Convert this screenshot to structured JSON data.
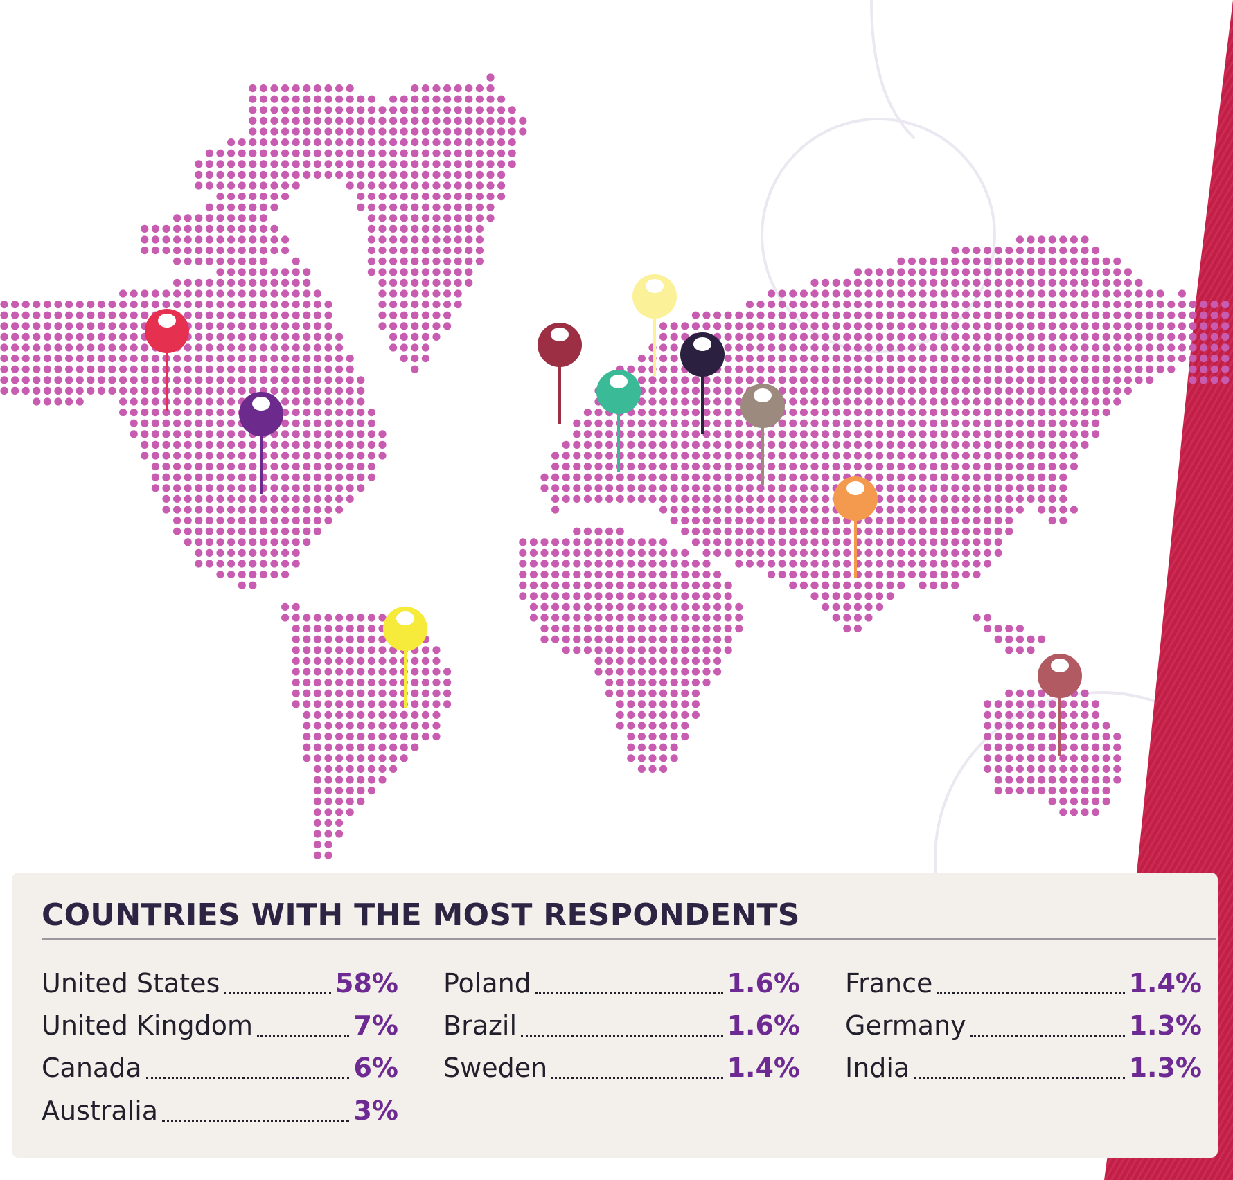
{
  "legend": {
    "title": "COUNTRIES WITH THE MOST RESPONDENTS",
    "columns": [
      [
        {
          "country": "United States",
          "percent": "58%"
        },
        {
          "country": "United Kingdom",
          "percent": "7%"
        },
        {
          "country": "Canada",
          "percent": "6%"
        },
        {
          "country": "Australia",
          "percent": "3%"
        }
      ],
      [
        {
          "country": "Poland",
          "percent": "1.6%"
        },
        {
          "country": "Brazil",
          "percent": "1.6%"
        },
        {
          "country": "Sweden",
          "percent": "1.4%"
        }
      ],
      [
        {
          "country": "France",
          "percent": "1.4%"
        },
        {
          "country": "Germany",
          "percent": "1.3%"
        },
        {
          "country": "India",
          "percent": "1.3%"
        }
      ]
    ]
  },
  "colors": {
    "map_dot": "#c75cb1",
    "title_text": "#2b2543",
    "percent_text": "#6d2a93",
    "legend_bg": "#f3efea",
    "side_band": "#c21f47"
  },
  "map_pins": [
    {
      "name": "canada-pin",
      "color": "#e6304f"
    },
    {
      "name": "united-states-pin",
      "color": "#6b2a8c"
    },
    {
      "name": "brazil-pin",
      "color": "#f6ea3a"
    },
    {
      "name": "united-kingdom-pin",
      "color": "#9c2f44"
    },
    {
      "name": "france-pin",
      "color": "#3aba96"
    },
    {
      "name": "sweden-pin",
      "color": "#faf198"
    },
    {
      "name": "poland-pin",
      "color": "#2b2040"
    },
    {
      "name": "germany-pin",
      "color": "#9c8a7e"
    },
    {
      "name": "india-pin",
      "color": "#f49a4e"
    },
    {
      "name": "australia-pin",
      "color": "#b25a62"
    }
  ]
}
